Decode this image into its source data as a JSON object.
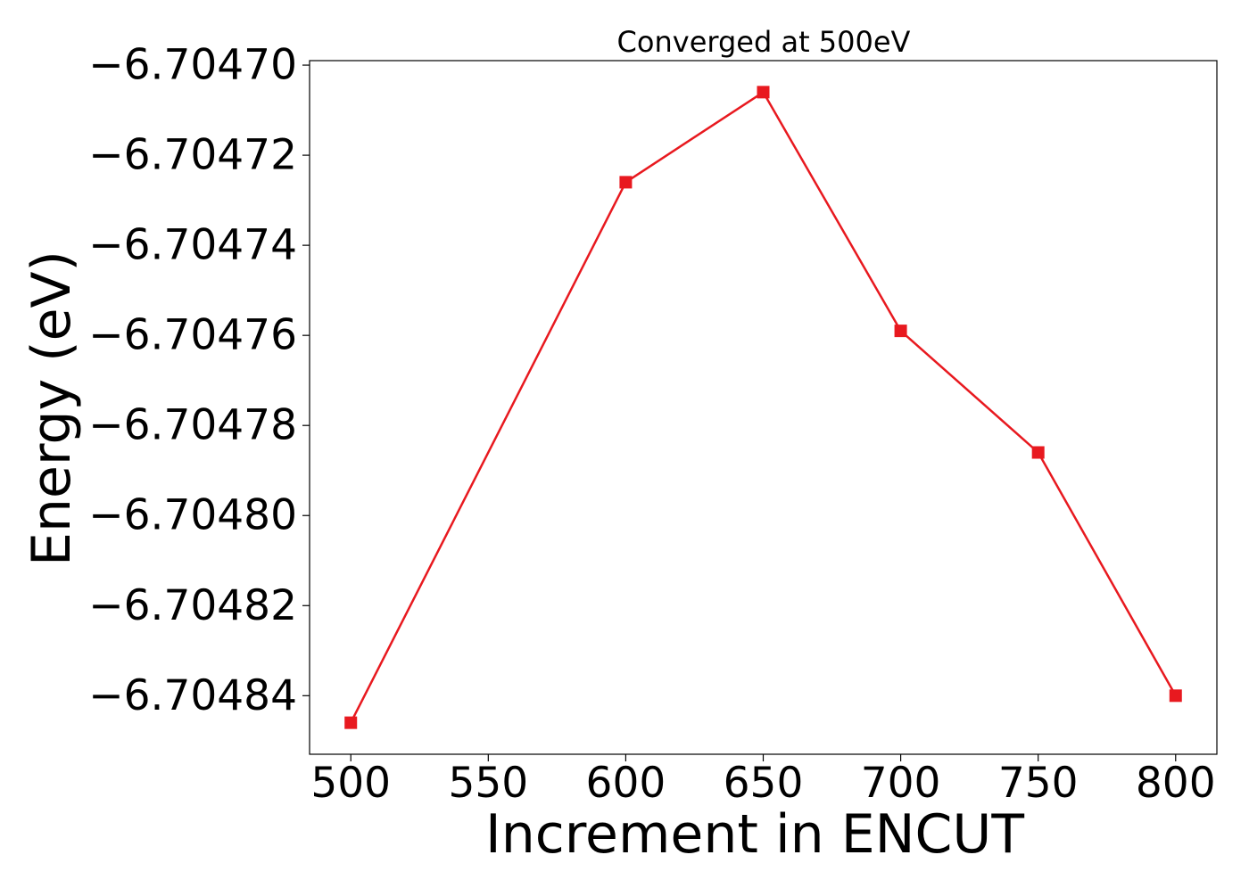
{
  "chart_data": {
    "type": "line",
    "title": "Converged at 500eV",
    "xlabel": "Increment in ENCUT",
    "ylabel": "Energy (eV)",
    "x": [
      500,
      600,
      650,
      700,
      750,
      800
    ],
    "series": [
      {
        "values": [
          -6.704846,
          -6.704726,
          -6.704706,
          -6.704759,
          -6.704786,
          -6.70484
        ],
        "color": "#e8191f",
        "marker": "square"
      }
    ],
    "xlim": [
      485,
      815
    ],
    "ylim": [
      -6.704853,
      -6.704699
    ],
    "xticks": [
      500,
      550,
      600,
      650,
      700,
      750,
      800
    ],
    "xtick_labels": [
      "500",
      "550",
      "600",
      "650",
      "700",
      "750",
      "800"
    ],
    "yticks": [
      -6.7047,
      -6.70472,
      -6.70474,
      -6.70476,
      -6.70478,
      -6.7048,
      -6.70482,
      -6.70484
    ],
    "ytick_labels": [
      "−6.70470",
      "−6.70472",
      "−6.70474",
      "−6.70476",
      "−6.70478",
      "−6.70480",
      "−6.70482",
      "−6.70484"
    ],
    "grid": false,
    "legend": "none"
  }
}
